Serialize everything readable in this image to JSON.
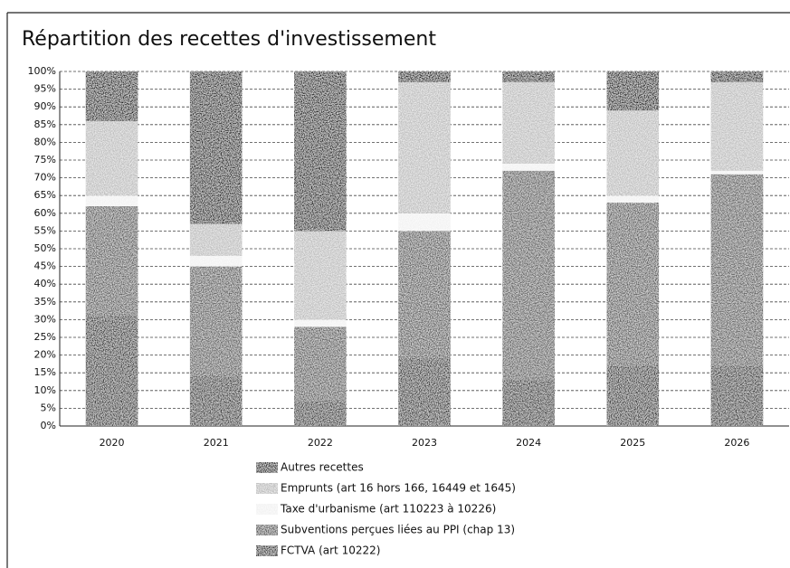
{
  "chart_data": {
    "type": "stacked_bar",
    "title": "Répartition des recettes d'investissement",
    "categories": [
      "2020",
      "2021",
      "2022",
      "2023",
      "2024",
      "2025",
      "2026"
    ],
    "series": [
      {
        "name": "FCTVA (art 10222)",
        "color": "#333333",
        "values": [
          31,
          14,
          7,
          19,
          13,
          17,
          17
        ]
      },
      {
        "name": "Subventions perçues liées au PPI (chap 13)",
        "color": "#5a5a5a",
        "values": [
          31,
          31,
          21,
          36,
          59,
          46,
          54
        ]
      },
      {
        "name": "Taxe d'urbanisme (art 110223 à 10226)",
        "color": "#f2f2f2",
        "values": [
          3,
          3,
          2,
          5,
          2,
          2,
          1
        ]
      },
      {
        "name": "Emprunts (art 16 hors 166, 16449 et 1645)",
        "color": "#bdbdbd",
        "values": [
          21,
          9,
          25,
          37,
          23,
          24,
          25
        ]
      },
      {
        "name": "Autres recettes",
        "color": "#1c1c1c",
        "values": [
          14,
          43,
          45,
          3,
          3,
          11,
          3
        ]
      }
    ],
    "ylim": [
      0,
      100
    ],
    "yticks": [
      {
        "value": 0,
        "label": "0%"
      },
      {
        "value": 5,
        "label": "5%"
      },
      {
        "value": 10,
        "label": "10%"
      },
      {
        "value": 15,
        "label": "15%"
      },
      {
        "value": 20,
        "label": "20%"
      },
      {
        "value": 25,
        "label": "25%"
      },
      {
        "value": 30,
        "label": "30%"
      },
      {
        "value": 35,
        "label": "35%"
      },
      {
        "value": 40,
        "label": "40%"
      },
      {
        "value": 45,
        "label": "45%"
      },
      {
        "value": 50,
        "label": "50%"
      },
      {
        "value": 55,
        "label": "55%"
      },
      {
        "value": 60,
        "label": "60%"
      },
      {
        "value": 65,
        "label": "65%"
      },
      {
        "value": 70,
        "label": "70%"
      },
      {
        "value": 75,
        "label": "75%"
      },
      {
        "value": 80,
        "label": "80%"
      },
      {
        "value": 85,
        "label": "85%"
      },
      {
        "value": 90,
        "label": "90%"
      },
      {
        "value": 95,
        "label": "95%"
      },
      {
        "value": 100,
        "label": "100%"
      }
    ],
    "grid": true
  }
}
